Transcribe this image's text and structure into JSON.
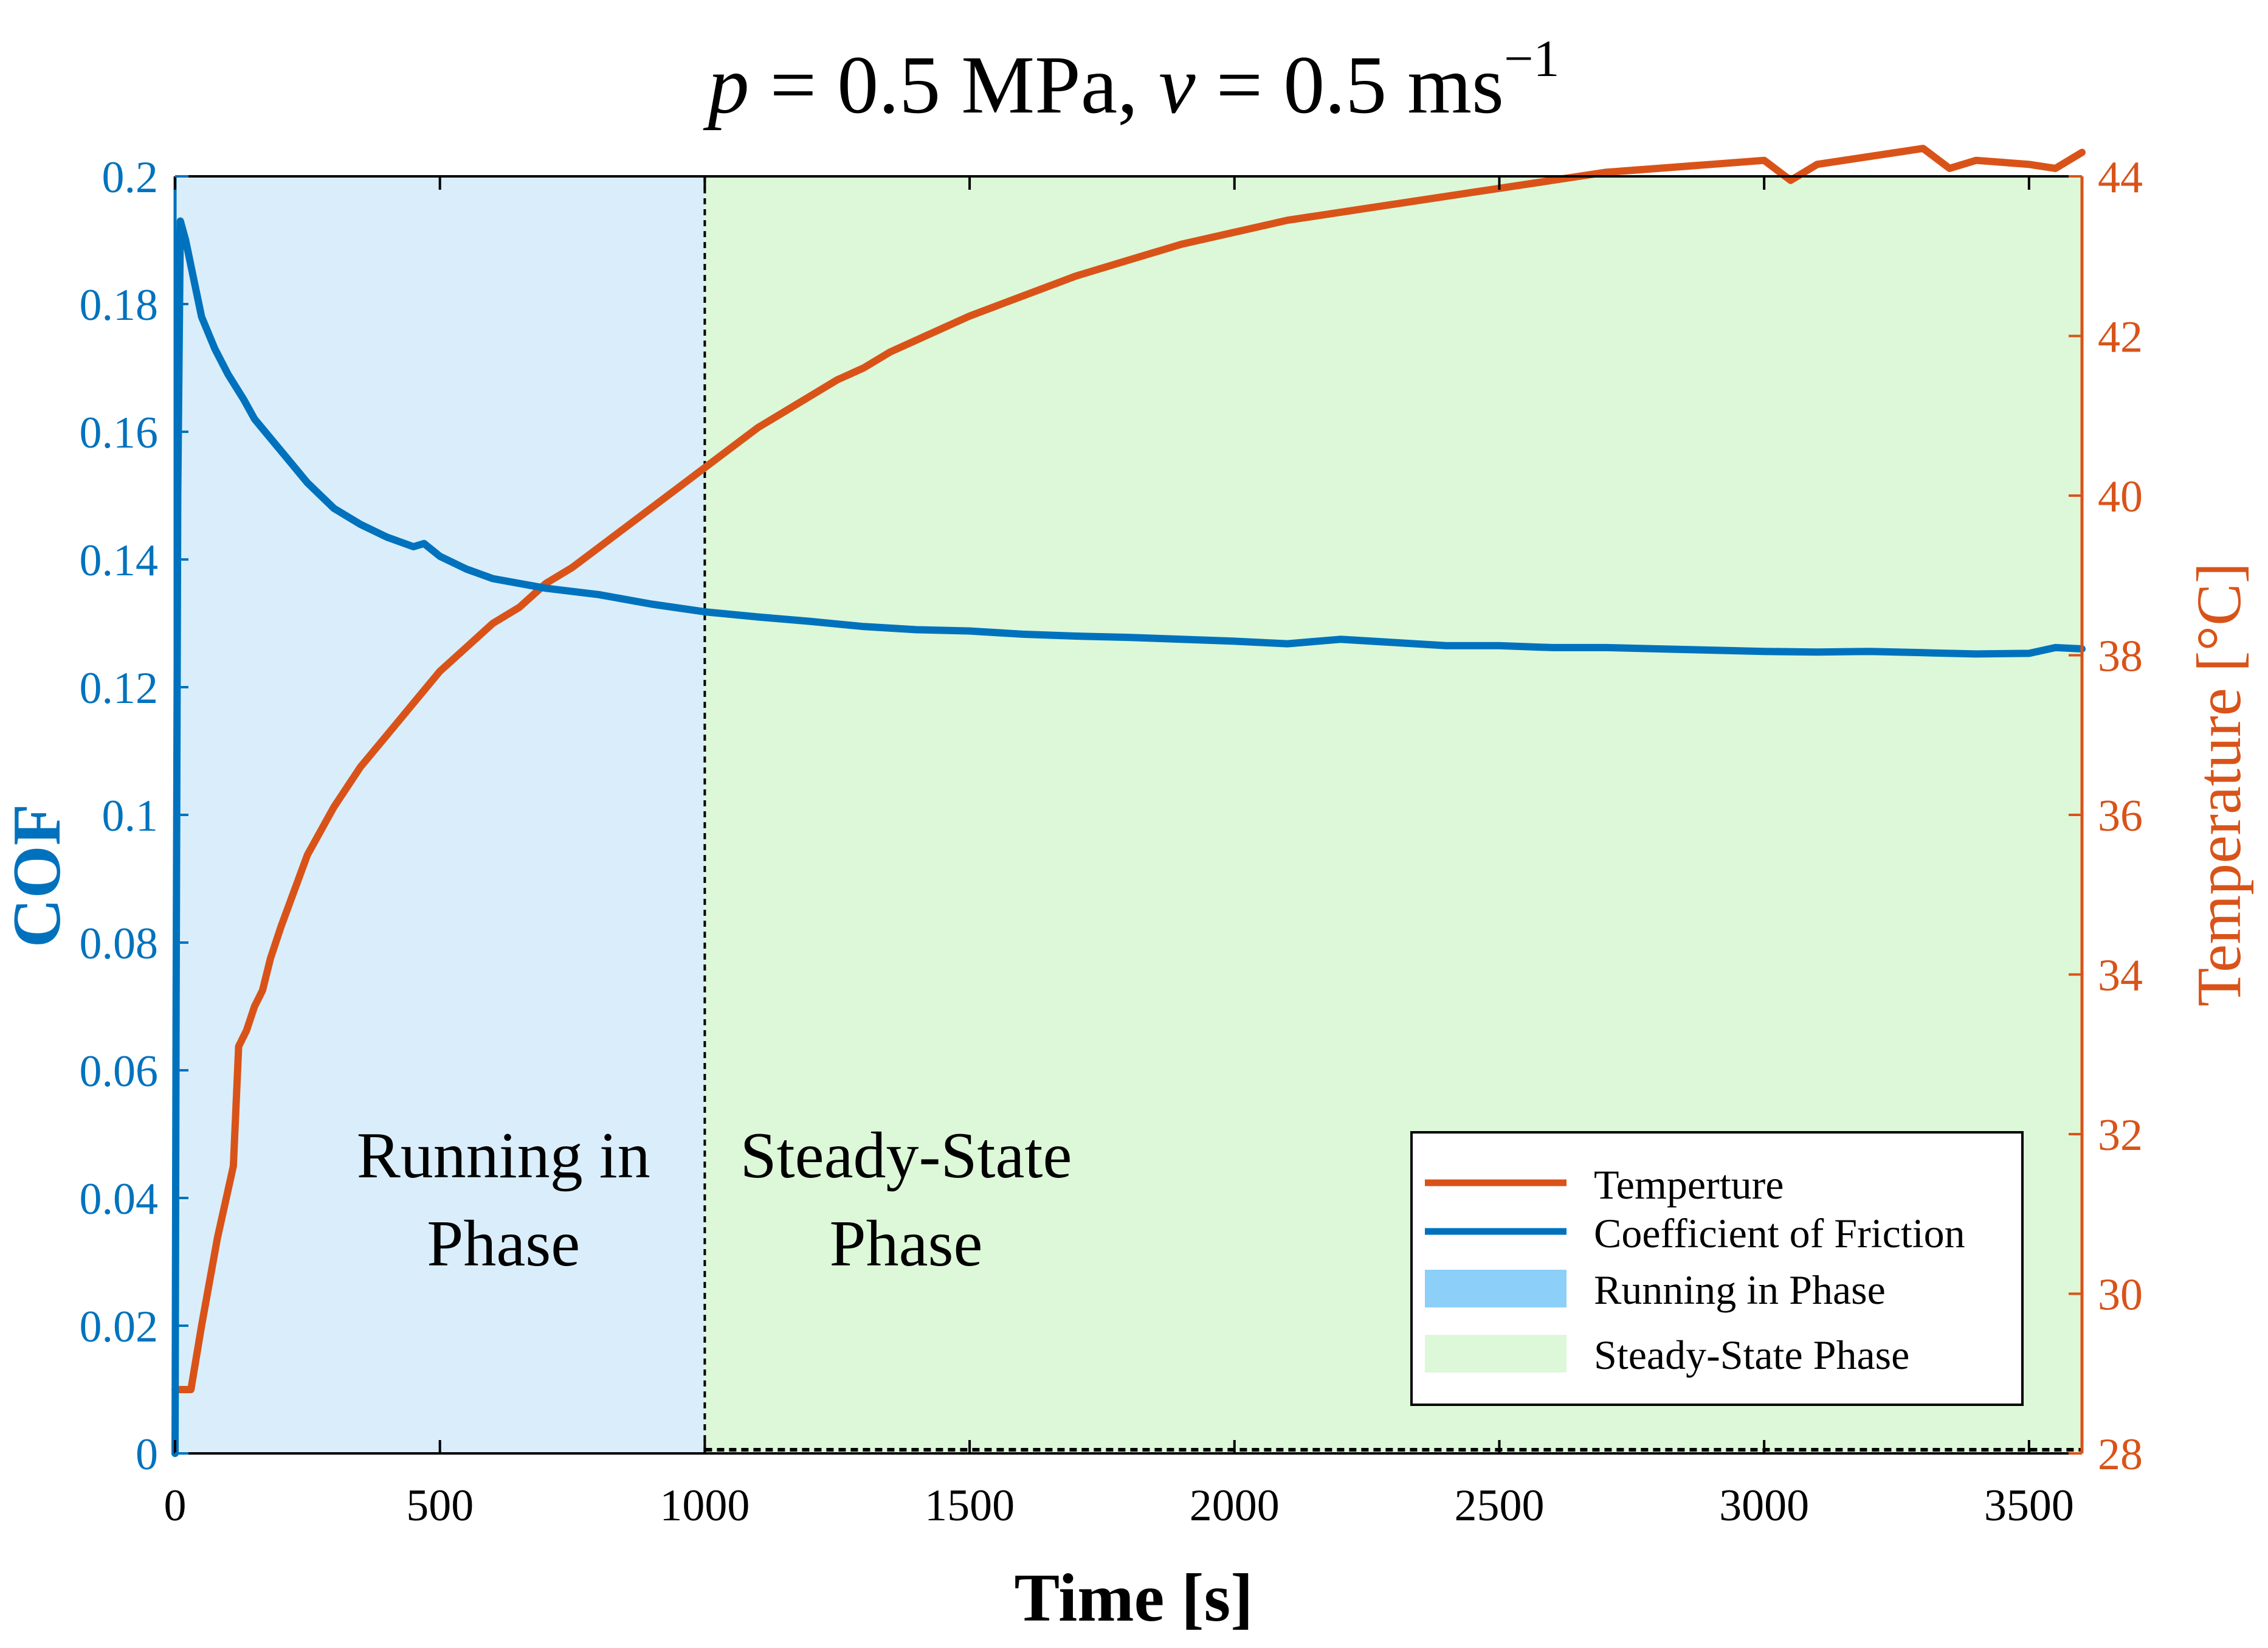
{
  "chart_data": {
    "type": "line",
    "title": {
      "p_symbol": "p",
      "p_text": " = 0.5 MPa, ",
      "v_symbol": "v",
      "v_text": " = 0.5 ms",
      "exponent": "−1"
    },
    "xlabel": "Time [s]",
    "ylabel_left": "COF",
    "ylabel_right": "Temperature [°C]",
    "xlim": [
      0,
      3600
    ],
    "ylim_left": [
      0,
      0.2
    ],
    "ylim_right": [
      28,
      44
    ],
    "x_ticks": [
      0,
      500,
      1000,
      1500,
      2000,
      2500,
      3000,
      3500
    ],
    "x_tick_labels": [
      "0",
      "500",
      "1000",
      "1500",
      "2000",
      "2500",
      "3000",
      "3500"
    ],
    "left_ticks": [
      0,
      0.02,
      0.04,
      0.06,
      0.08,
      0.1,
      0.12,
      0.14,
      0.16,
      0.18,
      0.2
    ],
    "left_tick_labels": [
      "0",
      "0.02",
      "0.04",
      "0.06",
      "0.08",
      "0.1",
      "0.12",
      "0.14",
      "0.16",
      "0.18",
      "0.2"
    ],
    "right_ticks": [
      28,
      30,
      32,
      34,
      36,
      38,
      40,
      42,
      44
    ],
    "right_tick_labels": [
      "28",
      "30",
      "32",
      "34",
      "36",
      "38",
      "40",
      "42",
      "44"
    ],
    "phase_boundary": 1000,
    "regions": [
      {
        "name": "Running in Phase",
        "x_start": 0,
        "x_end": 1000,
        "color": "#d9eefa"
      },
      {
        "name": "Steady-State Phase",
        "x_start": 1000,
        "x_end": 3600,
        "color": "#dcf8d8"
      }
    ],
    "annotations": [
      {
        "lines": [
          "Running in",
          "Phase"
        ],
        "x": 620,
        "y_cof": 0.028
      },
      {
        "lines": [
          "Steady-State",
          "Phase"
        ],
        "x": 1380,
        "y_cof": 0.028
      }
    ],
    "series": [
      {
        "name": "Temperture",
        "axis": "right",
        "color": "#d95319",
        "x": [
          0,
          10,
          20,
          30,
          50,
          80,
          110,
          120,
          135,
          150,
          165,
          180,
          200,
          250,
          300,
          350,
          400,
          450,
          500,
          550,
          600,
          650,
          700,
          750,
          800,
          850,
          900,
          950,
          1000,
          1050,
          1100,
          1150,
          1200,
          1250,
          1300,
          1350,
          1400,
          1450,
          1500,
          1600,
          1700,
          1800,
          1900,
          2000,
          2100,
          2200,
          2300,
          2400,
          2500,
          2600,
          2700,
          2800,
          2900,
          3000,
          3050,
          3100,
          3200,
          3300,
          3350,
          3400,
          3500,
          3550,
          3600
        ],
        "values": [
          28.8,
          28.8,
          28.8,
          28.8,
          29.6,
          30.7,
          31.6,
          33.1,
          33.3,
          33.6,
          33.8,
          34.2,
          34.6,
          35.5,
          36.1,
          36.6,
          37.0,
          37.4,
          37.8,
          38.1,
          38.4,
          38.6,
          38.9,
          39.1,
          39.35,
          39.6,
          39.85,
          40.1,
          40.35,
          40.6,
          40.85,
          41.05,
          41.25,
          41.45,
          41.6,
          41.8,
          41.95,
          42.1,
          42.25,
          42.5,
          42.75,
          42.95,
          43.15,
          43.3,
          43.45,
          43.55,
          43.65,
          43.75,
          43.85,
          43.95,
          44.05,
          44.1,
          44.15,
          44.2,
          43.95,
          44.15,
          44.25,
          44.35,
          44.1,
          44.2,
          44.15,
          44.1,
          44.3
        ]
      },
      {
        "name": "Coefficient of Friction",
        "axis": "left",
        "color": "#0072bd",
        "x": [
          0,
          2,
          5,
          10,
          20,
          30,
          50,
          75,
          100,
          130,
          150,
          170,
          200,
          250,
          300,
          350,
          400,
          450,
          470,
          500,
          550,
          600,
          700,
          800,
          900,
          1000,
          1100,
          1200,
          1300,
          1400,
          1500,
          1600,
          1700,
          1800,
          1900,
          2000,
          2100,
          2200,
          2300,
          2400,
          2500,
          2600,
          2700,
          2800,
          2900,
          3000,
          3100,
          3200,
          3300,
          3400,
          3500,
          3550,
          3600
        ],
        "values": [
          0.0,
          0.07,
          0.15,
          0.193,
          0.19,
          0.186,
          0.178,
          0.173,
          0.169,
          0.165,
          0.162,
          0.16,
          0.157,
          0.152,
          0.148,
          0.1455,
          0.1435,
          0.142,
          0.1425,
          0.1405,
          0.1385,
          0.137,
          0.1355,
          0.1345,
          0.133,
          0.1318,
          0.131,
          0.1303,
          0.1295,
          0.129,
          0.1288,
          0.1283,
          0.128,
          0.1278,
          0.1275,
          0.1272,
          0.1268,
          0.1275,
          0.127,
          0.1265,
          0.1265,
          0.1262,
          0.1262,
          0.126,
          0.1258,
          0.1256,
          0.1255,
          0.1256,
          0.1254,
          0.1252,
          0.1253,
          0.1262,
          0.126
        ]
      }
    ],
    "legend": {
      "position": "bottom-right",
      "entries": [
        {
          "label": "Temperture",
          "kind": "line",
          "color": "#d95319"
        },
        {
          "label": "Coefficient of Friction",
          "kind": "line",
          "color": "#0072bd"
        },
        {
          "label": "Running in Phase",
          "kind": "patch",
          "color": "#8ccff8"
        },
        {
          "label": "Steady-State Phase",
          "kind": "patch",
          "color": "#dcf8d8"
        }
      ]
    },
    "colors": {
      "left_axis": "#0072bd",
      "right_axis": "#d95319",
      "axes": "#000000"
    }
  }
}
